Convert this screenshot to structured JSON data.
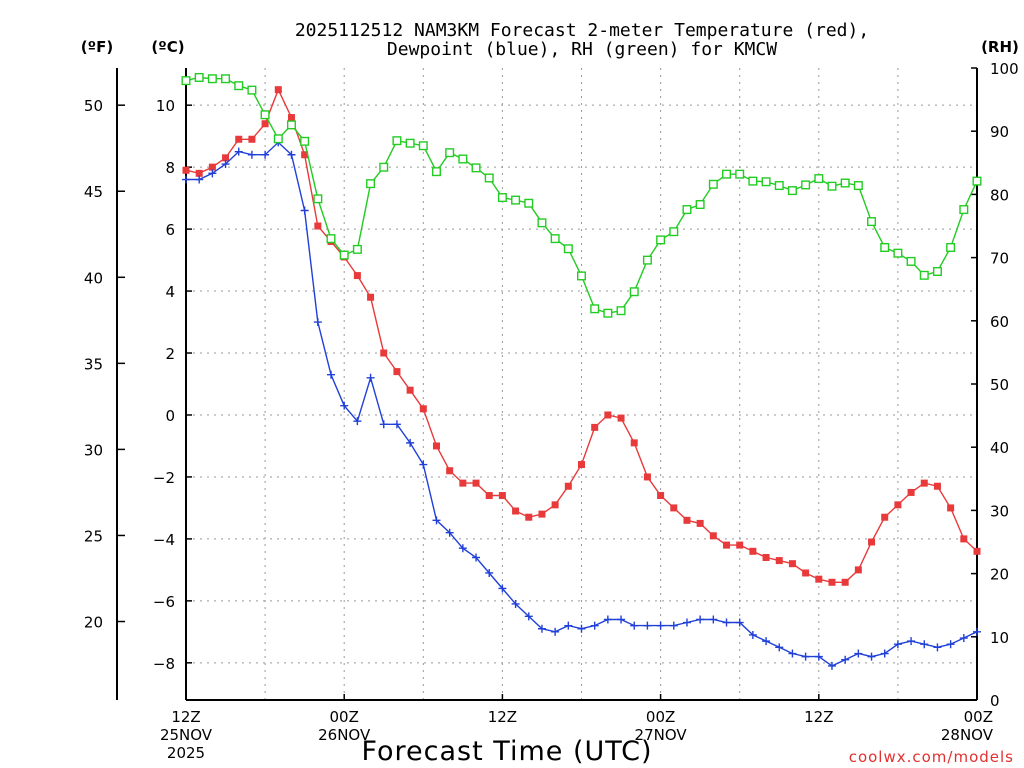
{
  "title_line1": "2025112512 NAM3KM Forecast 2-meter Temperature (red),",
  "title_line2": "Dewpoint (blue), RH (green) for KMCW",
  "unit_f": "(ºF)",
  "unit_c": "(ºC)",
  "unit_rh": "(RH)",
  "xlabel": "Forecast Time (UTC)",
  "credit": "coolwx.com/models",
  "colors": {
    "temperature": "#e83a3a",
    "dewpoint": "#2040d8",
    "rh": "#22cc22",
    "grid": "#999999",
    "axis": "#000000"
  },
  "chart_data": {
    "type": "line",
    "title": "2025112512 NAM3KM Forecast 2-meter Temperature (red), Dewpoint (blue), RH (green) for KMCW",
    "xlabel": "Forecast Time (UTC)",
    "x_unit": "hours since 2025-11-25 12Z",
    "xlim": [
      0,
      60
    ],
    "x_ticks": [
      {
        "hour": 0,
        "lines": [
          "12Z",
          "25NOV",
          "2025"
        ]
      },
      {
        "hour": 12,
        "lines": [
          "00Z",
          "26NOV"
        ]
      },
      {
        "hour": 24,
        "lines": [
          "12Z"
        ]
      },
      {
        "hour": 36,
        "lines": [
          "00Z",
          "27NOV"
        ]
      },
      {
        "hour": 48,
        "lines": [
          "12Z"
        ]
      },
      {
        "hour": 60,
        "lines": [
          "00Z",
          "28NOV"
        ]
      }
    ],
    "left_axis": {
      "label": "(ºC)",
      "ylim": [
        -9.2,
        11.2
      ],
      "ticks": [
        -8,
        -6,
        -4,
        -2,
        0,
        2,
        4,
        6,
        8,
        10
      ]
    },
    "far_left_axis": {
      "label": "(ºF)",
      "ticks": [
        20,
        25,
        30,
        35,
        40,
        45,
        50
      ]
    },
    "right_axis": {
      "label": "(RH)",
      "ylim": [
        0,
        100
      ],
      "ticks": [
        0,
        10,
        20,
        30,
        40,
        50,
        60,
        70,
        80,
        90,
        100
      ]
    },
    "series": [
      {
        "name": "Temperature",
        "unit": "°C",
        "axis": "left",
        "marker": "filled-square",
        "x": [
          0,
          1,
          2,
          3,
          4,
          5,
          6,
          7,
          8,
          9,
          10,
          11,
          12,
          13,
          14,
          15,
          16,
          17,
          18,
          19,
          20,
          21,
          22,
          23,
          24,
          25,
          26,
          27,
          28,
          29,
          30,
          31,
          32,
          33,
          34,
          35,
          36,
          37,
          38,
          39,
          40,
          41,
          42,
          43,
          44,
          45,
          46,
          47,
          48,
          49,
          50,
          51,
          52,
          53,
          54,
          55,
          56,
          57,
          58,
          59,
          60
        ],
        "values": [
          7.9,
          7.8,
          8.0,
          8.3,
          8.9,
          8.9,
          9.4,
          10.5,
          9.6,
          8.4,
          6.1,
          5.6,
          5.1,
          4.5,
          3.8,
          2.0,
          1.4,
          0.8,
          0.2,
          -1.0,
          -1.8,
          -2.2,
          -2.2,
          -2.6,
          -2.6,
          -3.1,
          -3.3,
          -3.2,
          -2.9,
          -2.3,
          -1.6,
          -0.4,
          0.0,
          -0.1,
          -0.9,
          -2.0,
          -2.6,
          -3.0,
          -3.4,
          -3.5,
          -3.9,
          -4.2,
          -4.2,
          -4.4,
          -4.6,
          -4.7,
          -4.8,
          -5.1,
          -5.3,
          -5.4,
          -5.4,
          -5.0,
          -4.1,
          -3.3,
          -2.9,
          -2.5,
          -2.2,
          -2.3,
          -3.0,
          -4.0,
          -4.4
        ]
      },
      {
        "name": "Dewpoint",
        "unit": "°C",
        "axis": "left",
        "marker": "plus",
        "x": [
          0,
          1,
          2,
          3,
          4,
          5,
          6,
          7,
          8,
          9,
          10,
          11,
          12,
          13,
          14,
          15,
          16,
          17,
          18,
          19,
          20,
          21,
          22,
          23,
          24,
          25,
          26,
          27,
          28,
          29,
          30,
          31,
          32,
          33,
          34,
          35,
          36,
          37,
          38,
          39,
          40,
          41,
          42,
          43,
          44,
          45,
          46,
          47,
          48,
          49,
          50,
          51,
          52,
          53,
          54,
          55,
          56,
          57,
          58,
          59,
          60
        ],
        "values": [
          7.6,
          7.6,
          7.8,
          8.1,
          8.5,
          8.4,
          8.4,
          8.8,
          8.4,
          6.6,
          3.0,
          1.3,
          0.3,
          -0.2,
          1.2,
          -0.3,
          -0.3,
          -0.9,
          -1.6,
          -3.4,
          -3.8,
          -4.3,
          -4.6,
          -5.1,
          -5.6,
          -6.1,
          -6.5,
          -6.9,
          -7.0,
          -6.8,
          -6.9,
          -6.8,
          -6.6,
          -6.6,
          -6.8,
          -6.8,
          -6.8,
          -6.8,
          -6.7,
          -6.6,
          -6.6,
          -6.7,
          -6.7,
          -7.1,
          -7.3,
          -7.5,
          -7.7,
          -7.8,
          -7.8,
          -8.1,
          -7.9,
          -7.7,
          -7.8,
          -7.7,
          -7.4,
          -7.3,
          -7.4,
          -7.5,
          -7.4,
          -7.2,
          -7.0
        ]
      },
      {
        "name": "RH",
        "unit": "%",
        "axis": "right",
        "marker": "open-square",
        "x": [
          0,
          1,
          2,
          3,
          4,
          5,
          6,
          7,
          8,
          9,
          10,
          11,
          12,
          13,
          14,
          15,
          16,
          17,
          18,
          19,
          20,
          21,
          22,
          23,
          24,
          25,
          26,
          27,
          28,
          29,
          30,
          31,
          32,
          33,
          34,
          35,
          36,
          37,
          38,
          39,
          40,
          41,
          42,
          43,
          44,
          45,
          46,
          47,
          48,
          49,
          50,
          51,
          52,
          53,
          54,
          55,
          56,
          57,
          58,
          59,
          60
        ],
        "values": [
          98,
          98.5,
          98.3,
          98.3,
          97.2,
          96.5,
          92.6,
          88.8,
          91,
          88.4,
          79.3,
          73,
          70.4,
          71.3,
          81.7,
          84.3,
          88.5,
          88.1,
          87.7,
          83.6,
          86.6,
          85.6,
          84.2,
          82.6,
          79.5,
          79.1,
          78.6,
          75.5,
          73,
          71.4,
          67.1,
          61.9,
          61.2,
          61.6,
          64.6,
          69.6,
          72.8,
          74.1,
          77.6,
          78.4,
          81.6,
          83.2,
          83.2,
          82.1,
          82,
          81.4,
          80.6,
          81.5,
          82.5,
          81.3,
          81.8,
          81.4,
          75.7,
          71.6,
          70.7,
          69.4,
          67.2,
          67.8,
          71.6,
          77.6,
          82.1
        ]
      }
    ],
    "grid": true
  }
}
